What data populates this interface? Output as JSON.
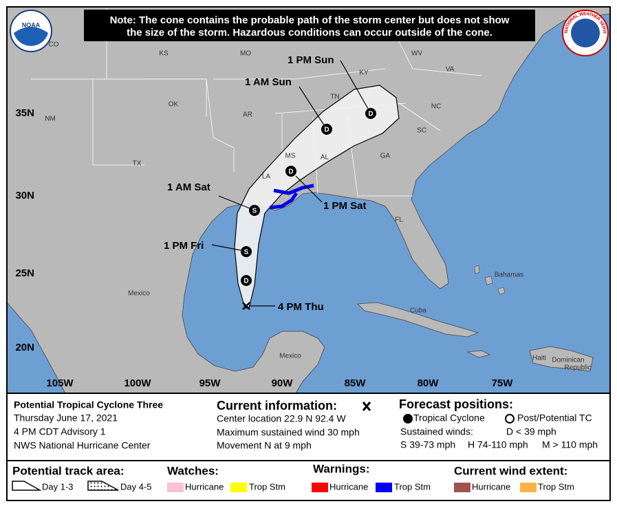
{
  "header": {
    "note_lines": [
      "Note: The cone contains the probable path of the storm center but does not show",
      "the size of the storm. Hazardous conditions can occur outside of the cone."
    ]
  },
  "logos": {
    "noaa": "NOAA",
    "nws": "NATIONAL WEATHER SERVICE"
  },
  "map": {
    "region_labels": [
      "CO",
      "KS",
      "MO",
      "KY",
      "WV",
      "VA",
      "OK",
      "TN",
      "NC",
      "AR",
      "SC",
      "NM",
      "TX",
      "MS",
      "AL",
      "GA",
      "LA",
      "FL",
      "Mexico",
      "Bahamas",
      "Cuba",
      "Mexico",
      "Haiti",
      "Dominican",
      "Republic"
    ],
    "latitude_labels": [
      "35N",
      "30N",
      "25N",
      "20N"
    ],
    "longitude_labels": [
      "105W",
      "100W",
      "95W",
      "90W",
      "85W",
      "80W",
      "75W"
    ]
  },
  "track": {
    "points": [
      {
        "time": "4 PM Thu"
      },
      {
        "marker": "D"
      },
      {
        "time": "1 PM Fri",
        "marker": "S"
      },
      {
        "time": "1 AM Sat",
        "marker": "S"
      },
      {
        "time": "1 PM Sat",
        "marker": "D"
      },
      {
        "time": "1 AM Sun",
        "marker": "D"
      },
      {
        "time": "1 PM Sun",
        "marker": "D"
      }
    ]
  },
  "info": {
    "storm": {
      "name": "Potential Tropical Cyclone Three",
      "date": "Thursday June 17, 2021",
      "advisory": "4 PM CDT Advisory 1",
      "source": "NWS National Hurricane Center"
    },
    "current": {
      "title": "Current information:",
      "lines": [
        "Center location 22.9 N 92.4 W",
        "Maximum sustained wind 30 mph",
        "Movement N at 9 mph"
      ]
    },
    "forecast": {
      "title": "Forecast positions:",
      "tropical": "Tropical Cyclone",
      "post": "Post/Potential TC",
      "winds_title": "Sustained winds:",
      "d": "D < 39 mph",
      "s": "S 39-73 mph",
      "h": "H 74-110 mph",
      "m": "M > 110 mph"
    }
  },
  "legend": {
    "track_area": {
      "title": "Potential track area:",
      "day13": "Day 1-3",
      "day45": "Day 4-5"
    },
    "watches": {
      "title": "Watches:",
      "hurricane": "Hurricane",
      "trop": "Trop Stm"
    },
    "warnings": {
      "title": "Warnings:",
      "hurricane": "Hurricane",
      "trop": "Trop Stm"
    },
    "wind": {
      "title": "Current wind extent:",
      "hurricane": "Hurricane",
      "trop": "Trop Stm"
    }
  }
}
